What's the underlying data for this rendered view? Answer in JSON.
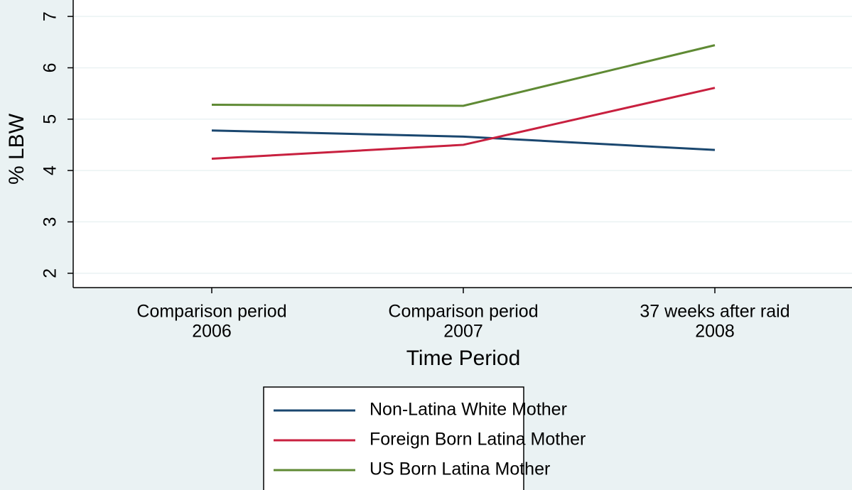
{
  "chart_data": {
    "type": "line",
    "x_label": "Time Period",
    "y_label": "% LBW",
    "categories": [
      [
        "Comparison period",
        "2006"
      ],
      [
        "Comparison period",
        "2007"
      ],
      [
        "37 weeks after raid",
        "2008"
      ]
    ],
    "series": [
      {
        "name": "Non-Latina White Mother",
        "color": "#1a476f",
        "values": [
          4.78,
          4.66,
          4.4
        ]
      },
      {
        "name": "Foreign Born Latina Mother",
        "color": "#c8203f",
        "values": [
          4.23,
          4.5,
          5.61
        ]
      },
      {
        "name": "US Born Latina Mother",
        "color": "#5f8a34",
        "values": [
          5.28,
          5.26,
          6.44
        ]
      }
    ],
    "ylim": [
      1.72,
      7.32
    ],
    "yticks": [
      2,
      3,
      4,
      5,
      6,
      7
    ],
    "grid": true,
    "legend": "bottom"
  }
}
